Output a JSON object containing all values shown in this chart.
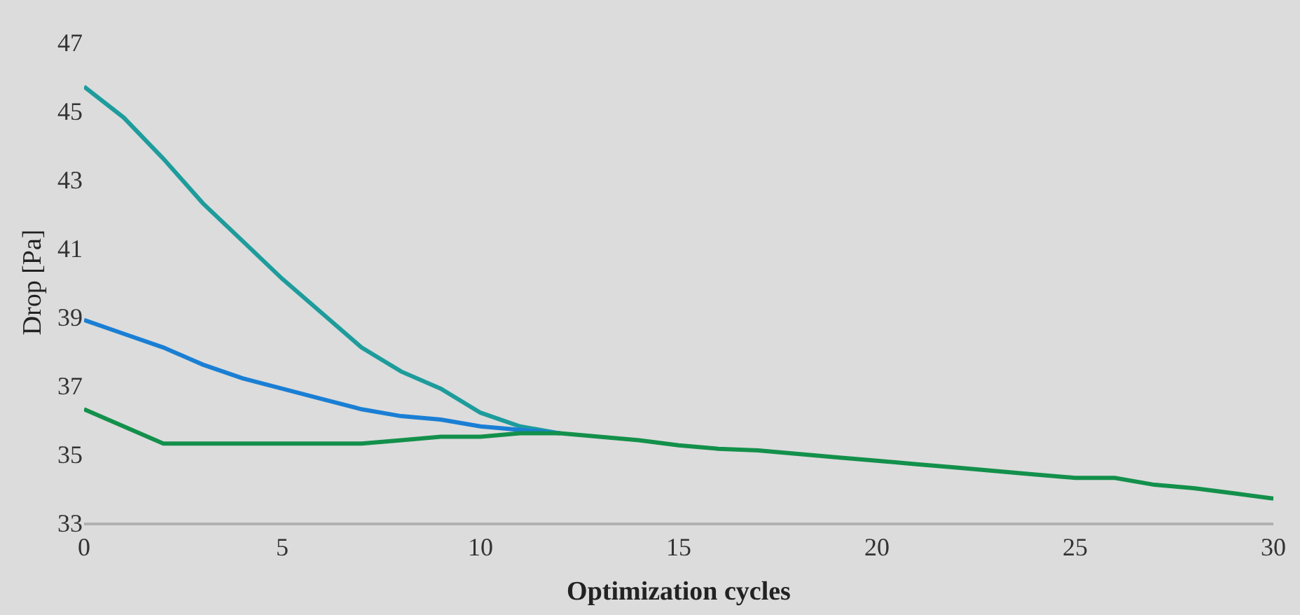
{
  "chart_data": {
    "type": "line",
    "xlabel": "Optimization cycles",
    "ylabel": "Drop [Pa]",
    "x": [
      0,
      1,
      2,
      3,
      4,
      5,
      6,
      7,
      8,
      9,
      10,
      11,
      12,
      13,
      14,
      15,
      16,
      17,
      18,
      19,
      20,
      21,
      22,
      23,
      24,
      25,
      26,
      27,
      28,
      29,
      30
    ],
    "xlim": [
      0,
      30
    ],
    "xticks": [
      0,
      5,
      10,
      15,
      20,
      25,
      30
    ],
    "ylim": [
      33,
      47
    ],
    "yticks": [
      33,
      35,
      37,
      39,
      41,
      43,
      45,
      47
    ],
    "grid": false,
    "marker": "none",
    "line_style": "solid",
    "series": [
      {
        "color": "#1e9c9c",
        "values": [
          45.7,
          44.8,
          43.6,
          42.3,
          41.2,
          40.1,
          39.1,
          38.1,
          37.4,
          36.9,
          36.2,
          35.8,
          35.6,
          null,
          null,
          null,
          null,
          null,
          null,
          null,
          null,
          null,
          null,
          null,
          null,
          null,
          null,
          null,
          null,
          null,
          null
        ]
      },
      {
        "color": "#1a7fd4",
        "values": [
          38.9,
          38.5,
          38.1,
          37.6,
          37.2,
          36.9,
          36.6,
          36.3,
          36.1,
          36.0,
          35.8,
          35.7,
          35.6,
          null,
          null,
          null,
          null,
          null,
          null,
          null,
          null,
          null,
          null,
          null,
          null,
          null,
          null,
          null,
          null,
          null,
          null
        ]
      },
      {
        "color": "#13904b",
        "values": [
          36.3,
          35.8,
          35.3,
          35.3,
          35.3,
          35.3,
          35.3,
          35.3,
          35.4,
          35.5,
          35.5,
          35.6,
          35.6,
          35.5,
          35.4,
          35.25,
          35.15,
          35.1,
          35.0,
          34.9,
          34.8,
          34.7,
          34.6,
          34.5,
          34.4,
          34.3,
          34.3,
          34.1,
          34.0,
          33.85,
          33.7
        ]
      }
    ]
  }
}
